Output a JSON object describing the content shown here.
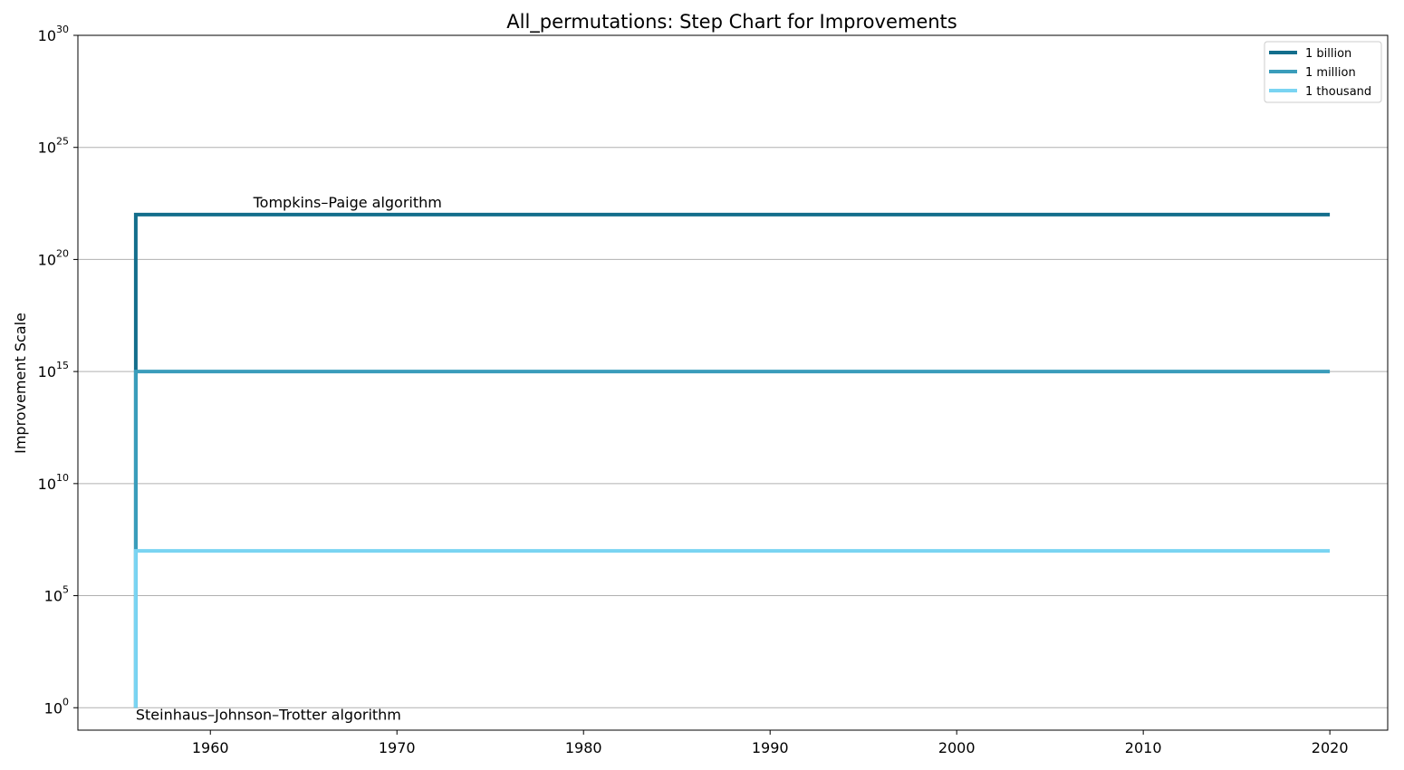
{
  "chart_data": {
    "type": "line",
    "title": "All_permutations: Step Chart for Improvements",
    "xlabel": "",
    "ylabel": "Improvement Scale",
    "y_scale": "log",
    "xlim": [
      1952.9,
      2023.1
    ],
    "ylim_exponent": [
      -1,
      30
    ],
    "x_ticks": [
      1960,
      1970,
      1980,
      1990,
      2000,
      2010,
      2020
    ],
    "y_tick_exponents": [
      0,
      5,
      10,
      15,
      20,
      25,
      30
    ],
    "grid": "horizontal",
    "legend_position": "top-right",
    "series": [
      {
        "name": "1 billion",
        "color": "#136e8c",
        "points": [
          [
            1956,
            1
          ],
          [
            1956,
            1e+22
          ],
          [
            2020,
            1e+22
          ]
        ]
      },
      {
        "name": "1 million",
        "color": "#3a9dbb",
        "points": [
          [
            1956,
            1
          ],
          [
            1956,
            1000000000000000.0
          ],
          [
            2020,
            1000000000000000.0
          ]
        ]
      },
      {
        "name": "1 thousand",
        "color": "#7ad4f2",
        "points": [
          [
            1956,
            1
          ],
          [
            1956,
            10000000.0
          ],
          [
            2020,
            10000000.0
          ]
        ]
      }
    ],
    "annotations": [
      {
        "text": "Tompkins–Paige algorithm",
        "x": 1962.3,
        "y": 1e+22
      },
      {
        "text": "Steinhaus–Johnson–Trotter algorithm",
        "x": 1956,
        "y": 1
      }
    ]
  }
}
